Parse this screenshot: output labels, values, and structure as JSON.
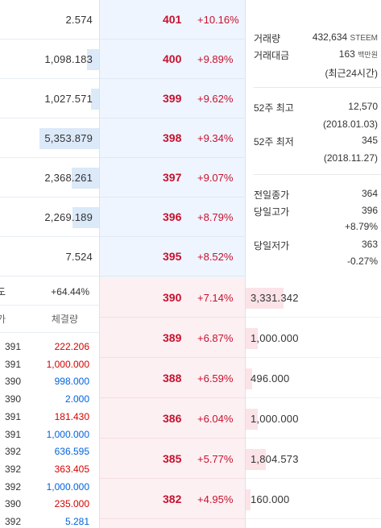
{
  "sell_orders": [
    {
      "volume": "2.574",
      "fill": 0.0,
      "price": "401",
      "change": "+10.16%"
    },
    {
      "volume": "1,098.183",
      "fill": 0.12,
      "price": "400",
      "change": "+9.89%"
    },
    {
      "volume": "1,027.571",
      "fill": 0.08,
      "price": "399",
      "change": "+9.62%"
    },
    {
      "volume": "5,353.879",
      "fill": 0.6,
      "price": "398",
      "change": "+9.34%"
    },
    {
      "volume": "2,368.261",
      "fill": 0.28,
      "price": "397",
      "change": "+9.07%"
    },
    {
      "volume": "2,269.189",
      "fill": 0.27,
      "price": "396",
      "change": "+8.79%"
    },
    {
      "volume": "7.524",
      "fill": 0.0,
      "price": "395",
      "change": "+8.52%"
    }
  ],
  "buy_orders": [
    {
      "price": "390",
      "change": "+7.14%",
      "volume": "3,331.342",
      "fill": 0.28
    },
    {
      "price": "389",
      "change": "+6.87%",
      "volume": "1,000.000",
      "fill": 0.09
    },
    {
      "price": "388",
      "change": "+6.59%",
      "volume": "496.000",
      "fill": 0.05
    },
    {
      "price": "386",
      "change": "+6.04%",
      "volume": "1,000.000",
      "fill": 0.09
    },
    {
      "price": "385",
      "change": "+5.77%",
      "volume": "1,804.573",
      "fill": 0.15
    },
    {
      "price": "382",
      "change": "+4.95%",
      "volume": "160.000",
      "fill": 0.02
    }
  ],
  "info": {
    "volume_label": "거래량",
    "volume_value": "432,634",
    "volume_unit": "STEEM",
    "amount_label": "거래대금",
    "amount_value": "163",
    "amount_unit": "백만원",
    "period_note": "(최근24시간)",
    "high52_label": "52주 최고",
    "high52_value": "12,570",
    "high52_date": "(2018.01.03)",
    "low52_label": "52주 최저",
    "low52_value": "345",
    "low52_date": "(2018.11.27)",
    "prev_close_label": "전일종가",
    "prev_close_value": "364",
    "day_high_label": "당일고가",
    "day_high_value": "396",
    "day_high_change": "+8.79%",
    "day_low_label": "당일저가",
    "day_low_value": "363",
    "day_low_change": "-0.27%"
  },
  "strength": {
    "label": "도",
    "value": "+64.44%"
  },
  "trades_header": {
    "price_label": "가",
    "volume_label": "체결량"
  },
  "trades": [
    {
      "price": "391",
      "volume": "222.206",
      "side": "up"
    },
    {
      "price": "391",
      "volume": "1,000.000",
      "side": "up"
    },
    {
      "price": "390",
      "volume": "998.000",
      "side": "down"
    },
    {
      "price": "390",
      "volume": "2.000",
      "side": "down"
    },
    {
      "price": "391",
      "volume": "181.430",
      "side": "up"
    },
    {
      "price": "391",
      "volume": "1,000.000",
      "side": "down"
    },
    {
      "price": "392",
      "volume": "636.595",
      "side": "down"
    },
    {
      "price": "392",
      "volume": "363.405",
      "side": "up"
    },
    {
      "price": "392",
      "volume": "1,000.000",
      "side": "down"
    },
    {
      "price": "390",
      "volume": "235.000",
      "side": "up"
    },
    {
      "price": "392",
      "volume": "5.281",
      "side": "down"
    }
  ],
  "colors": {
    "up": "#d60000",
    "down": "#0062df",
    "sell_bg": "#eef5fe",
    "buy_bg": "#fdf0f2"
  }
}
